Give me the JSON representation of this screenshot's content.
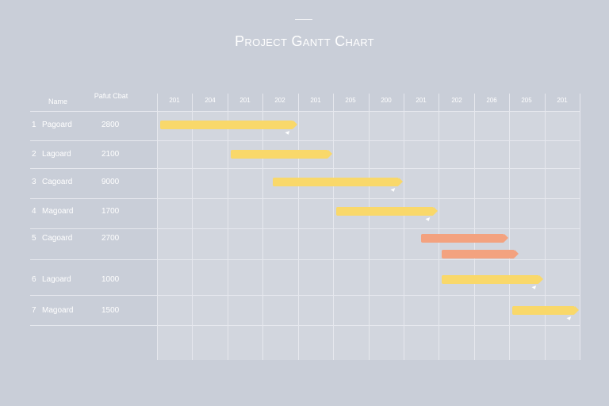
{
  "title": "Project Gantt Chart",
  "colors": {
    "background": "#c9ced8",
    "grid": "#e6e8ee",
    "bar_primary": "#f9d86a",
    "bar_secondary": "#f3a27f",
    "text": "#ffffff"
  },
  "chart_data": {
    "type": "gantt",
    "title": "Project Gantt Chart",
    "columns": {
      "name": "Name",
      "value": "Pafut Cbat"
    },
    "timeline_ticks": [
      "201",
      "204",
      "201",
      "202",
      "201",
      "205",
      "200",
      "201",
      "202",
      "206",
      "205",
      "201"
    ],
    "grid": true,
    "tasks": [
      {
        "id": "1",
        "name": "Pagoard",
        "value": "2800",
        "start": 0,
        "end": 4,
        "color": "yellow",
        "marker": true
      },
      {
        "id": "2",
        "name": "Lagoard",
        "value": "2100",
        "start": 2,
        "end": 5,
        "color": "yellow",
        "marker": false
      },
      {
        "id": "3",
        "name": "Cagoard",
        "value": "9000",
        "start": 3.2,
        "end": 7,
        "color": "yellow",
        "marker": true
      },
      {
        "id": "4",
        "name": "Magoard",
        "value": "1700",
        "start": 5,
        "end": 8,
        "color": "yellow",
        "marker": true
      },
      {
        "id": "5",
        "name": "Cagoard",
        "value": "2700",
        "start": 7.4,
        "end": 10,
        "color": "salmon",
        "marker": false
      },
      {
        "id": "",
        "name": "",
        "value": "",
        "start": 8,
        "end": 10.3,
        "color": "salmon",
        "marker": false
      },
      {
        "id": "6",
        "name": "Lagoard",
        "value": "1000",
        "start": 8,
        "end": 11,
        "color": "yellow",
        "marker": true
      },
      {
        "id": "7",
        "name": "Magoard",
        "value": "1500",
        "start": 10,
        "end": 12,
        "color": "yellow",
        "marker": true
      }
    ]
  }
}
